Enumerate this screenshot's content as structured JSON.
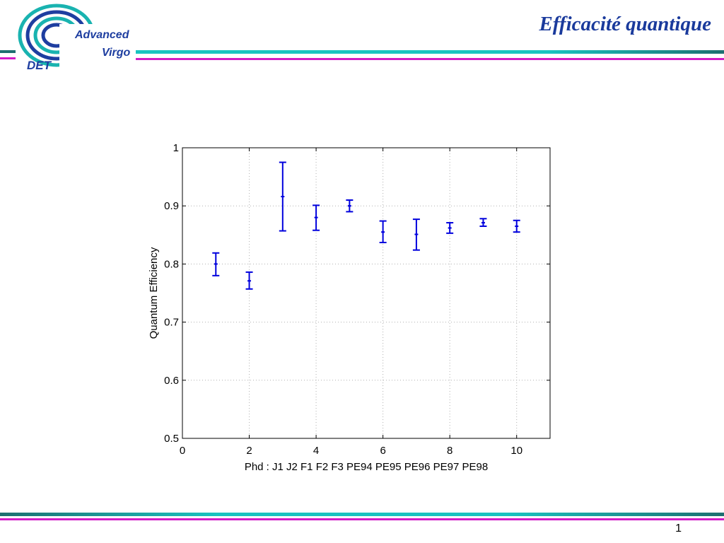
{
  "header": {
    "title": "Efficacité quantique",
    "logo": {
      "line1": "Advanced",
      "line2": "Virgo",
      "line3": "DET"
    }
  },
  "footer": {
    "page_number": "1"
  },
  "colors": {
    "title": "#1a3a9c",
    "bar_teal_dark": "#1d6f70",
    "bar_teal_light": "#19c3c0",
    "bar_magenta": "#d21cc7",
    "series": "#0000dd"
  },
  "chart_data": {
    "type": "scatter",
    "title": "",
    "xlabel": "Phd : J1 J2 F1 F2 F3 PE94 PE95 PE96 PE97 PE98",
    "ylabel": "Quantum Efficiency",
    "xlim": [
      0,
      11
    ],
    "ylim": [
      0.5,
      1
    ],
    "xticks": [
      0,
      2,
      4,
      6,
      8,
      10
    ],
    "yticks": [
      0.5,
      0.6,
      0.7,
      0.8,
      0.9,
      1
    ],
    "xtick_labels": [
      "0",
      "2",
      "4",
      "6",
      "8",
      "10"
    ],
    "ytick_labels": [
      "0.5",
      "0.6",
      "0.7",
      "0.8",
      "0.9",
      "1"
    ],
    "grid": true,
    "error_bars": true,
    "points": [
      {
        "x": 1,
        "y": 0.8,
        "ylow": 0.78,
        "yhigh": 0.819
      },
      {
        "x": 2,
        "y": 0.771,
        "ylow": 0.757,
        "yhigh": 0.786
      },
      {
        "x": 3,
        "y": 0.916,
        "ylow": 0.857,
        "yhigh": 0.975
      },
      {
        "x": 4,
        "y": 0.88,
        "ylow": 0.858,
        "yhigh": 0.901
      },
      {
        "x": 5,
        "y": 0.9,
        "ylow": 0.89,
        "yhigh": 0.91
      },
      {
        "x": 6,
        "y": 0.855,
        "ylow": 0.837,
        "yhigh": 0.874
      },
      {
        "x": 7,
        "y": 0.851,
        "ylow": 0.824,
        "yhigh": 0.877
      },
      {
        "x": 8,
        "y": 0.862,
        "ylow": 0.853,
        "yhigh": 0.871
      },
      {
        "x": 9,
        "y": 0.871,
        "ylow": 0.865,
        "yhigh": 0.878
      },
      {
        "x": 10,
        "y": 0.865,
        "ylow": 0.855,
        "yhigh": 0.875
      }
    ]
  }
}
